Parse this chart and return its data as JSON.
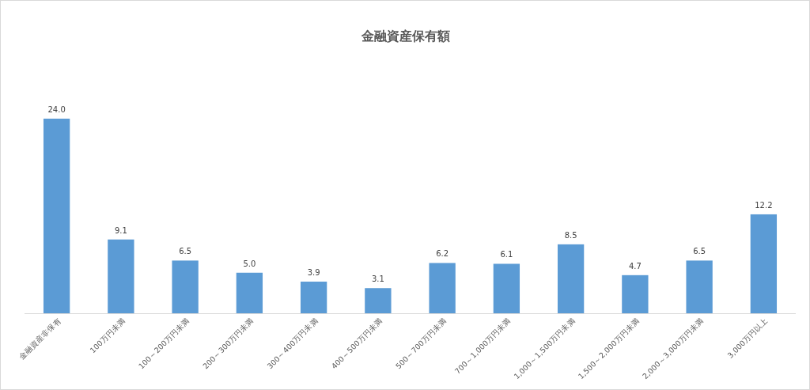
{
  "chart_data": {
    "type": "bar",
    "title": "金融資産保有額",
    "categories": [
      "金融資産非保有",
      "100万円未満",
      "100～200万円未満",
      "200～300万円未満",
      "300～400万円未満",
      "400～500万円未満",
      "500～700万円未満",
      "700～1,000万円未満",
      "1,000～1,500万円未満",
      "1,500～2,000万円未満",
      "2,000～3,000万円未満",
      "3,000万円以上"
    ],
    "values": [
      24.0,
      9.1,
      6.5,
      5.0,
      3.9,
      3.1,
      6.2,
      6.1,
      8.5,
      4.7,
      6.5,
      12.2
    ],
    "value_labels": [
      "24.0",
      "9.1",
      "6.5",
      "5.0",
      "3.9",
      "3.1",
      "6.2",
      "6.1",
      "8.5",
      "4.7",
      "6.5",
      "12.2"
    ],
    "color": "#5b9bd5"
  }
}
